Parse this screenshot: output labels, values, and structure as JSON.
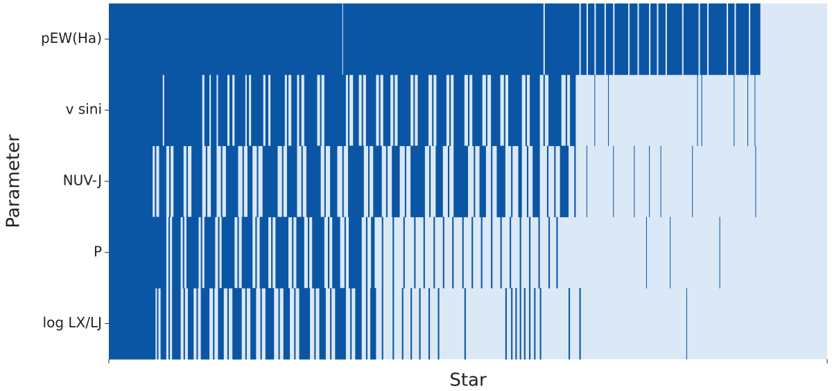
{
  "chart_data": {
    "type": "heatmap",
    "xlabel": "Star",
    "ylabel": "Parameter",
    "xlim": [
      0,
      1000
    ],
    "color": "#0b56a4",
    "background": "#dbe8f6",
    "series": [
      {
        "name": "pEW(Ha)",
        "spans": [
          [
            0,
            325
          ],
          [
            326,
            605
          ],
          [
            607,
            655
          ],
          [
            657,
            665
          ],
          [
            667,
            676
          ],
          [
            678,
            690
          ],
          [
            692,
            702
          ],
          [
            704,
            723
          ],
          [
            725,
            736
          ],
          [
            738,
            752
          ],
          [
            754,
            763
          ],
          [
            765,
            775
          ],
          [
            777,
            798
          ],
          [
            800,
            821
          ],
          [
            823,
            833
          ],
          [
            835,
            860
          ],
          [
            862,
            871
          ],
          [
            873,
            891
          ],
          [
            893,
            907
          ]
        ]
      },
      {
        "name": "v sini",
        "spans": [
          [
            0,
            75
          ],
          [
            77,
            130
          ],
          [
            133,
            140
          ],
          [
            142,
            150
          ],
          [
            152,
            165
          ],
          [
            168,
            172
          ],
          [
            175,
            190
          ],
          [
            192,
            195
          ],
          [
            198,
            215
          ],
          [
            218,
            222
          ],
          [
            225,
            245
          ],
          [
            248,
            250
          ],
          [
            254,
            262
          ],
          [
            265,
            268
          ],
          [
            272,
            290
          ],
          [
            294,
            296
          ],
          [
            300,
            330
          ],
          [
            333,
            335
          ],
          [
            340,
            348
          ],
          [
            352,
            354
          ],
          [
            358,
            372
          ],
          [
            376,
            378
          ],
          [
            382,
            392
          ],
          [
            396,
            398
          ],
          [
            402,
            420
          ],
          [
            424,
            426
          ],
          [
            430,
            445
          ],
          [
            450,
            452
          ],
          [
            456,
            470
          ],
          [
            474,
            476
          ],
          [
            480,
            495
          ],
          [
            500,
            502
          ],
          [
            506,
            520
          ],
          [
            525,
            527
          ],
          [
            532,
            545
          ],
          [
            550,
            552
          ],
          [
            556,
            575
          ],
          [
            580,
            582
          ],
          [
            586,
            600
          ],
          [
            605,
            607
          ],
          [
            612,
            630
          ],
          [
            636,
            638
          ],
          [
            642,
            650
          ],
          [
            676,
            677
          ],
          [
            695,
            696
          ],
          [
            819,
            820
          ],
          [
            825,
            826
          ],
          [
            870,
            871
          ],
          [
            889,
            890
          ],
          [
            899,
            900
          ]
        ]
      },
      {
        "name": "NUV-J",
        "spans": [
          [
            0,
            61
          ],
          [
            64,
            66
          ],
          [
            70,
            80
          ],
          [
            84,
            86
          ],
          [
            90,
            104
          ],
          [
            108,
            110
          ],
          [
            115,
            130
          ],
          [
            135,
            137
          ],
          [
            142,
            150
          ],
          [
            156,
            158
          ],
          [
            163,
            180
          ],
          [
            186,
            188
          ],
          [
            193,
            200
          ],
          [
            206,
            208
          ],
          [
            214,
            235
          ],
          [
            241,
            243
          ],
          [
            248,
            262
          ],
          [
            268,
            270
          ],
          [
            275,
            295
          ],
          [
            300,
            302
          ],
          [
            308,
            318
          ],
          [
            325,
            327
          ],
          [
            333,
            355
          ],
          [
            361,
            363
          ],
          [
            368,
            380
          ],
          [
            386,
            388
          ],
          [
            394,
            405
          ],
          [
            412,
            414
          ],
          [
            420,
            440
          ],
          [
            446,
            448
          ],
          [
            455,
            465
          ],
          [
            472,
            474
          ],
          [
            480,
            500
          ],
          [
            508,
            510
          ],
          [
            516,
            525
          ],
          [
            532,
            534
          ],
          [
            540,
            552
          ],
          [
            560,
            562
          ],
          [
            570,
            575
          ],
          [
            582,
            584
          ],
          [
            590,
            600
          ],
          [
            610,
            612
          ],
          [
            620,
            622
          ],
          [
            628,
            640
          ],
          [
            648,
            650
          ],
          [
            665,
            666
          ],
          [
            702,
            703
          ],
          [
            731,
            732
          ],
          [
            752,
            753
          ],
          [
            768,
            769
          ],
          [
            812,
            813
          ],
          [
            900,
            901
          ]
        ]
      },
      {
        "name": "P",
        "spans": [
          [
            0,
            80
          ],
          [
            83,
            85
          ],
          [
            88,
            100
          ],
          [
            103,
            105
          ],
          [
            108,
            125
          ],
          [
            128,
            130
          ],
          [
            133,
            148
          ],
          [
            152,
            154
          ],
          [
            157,
            175
          ],
          [
            179,
            181
          ],
          [
            185,
            200
          ],
          [
            204,
            206
          ],
          [
            210,
            222
          ],
          [
            226,
            228
          ],
          [
            232,
            250
          ],
          [
            255,
            257
          ],
          [
            261,
            272
          ],
          [
            277,
            279
          ],
          [
            283,
            300
          ],
          [
            305,
            307
          ],
          [
            311,
            322
          ],
          [
            328,
            330
          ],
          [
            334,
            352
          ],
          [
            358,
            360
          ],
          [
            365,
            370
          ],
          [
            380,
            382
          ],
          [
            395,
            397
          ],
          [
            410,
            412
          ],
          [
            425,
            427
          ],
          [
            438,
            440
          ],
          [
            452,
            454
          ],
          [
            465,
            467
          ],
          [
            478,
            480
          ],
          [
            492,
            494
          ],
          [
            505,
            507
          ],
          [
            518,
            520
          ],
          [
            532,
            534
          ],
          [
            545,
            547
          ],
          [
            558,
            560
          ],
          [
            572,
            574
          ],
          [
            585,
            587
          ],
          [
            598,
            600
          ],
          [
            612,
            614
          ],
          [
            623,
            625
          ],
          [
            748,
            749
          ],
          [
            781,
            782
          ],
          [
            850,
            851
          ]
        ]
      },
      {
        "name": "log LX/LJ",
        "spans": [
          [
            0,
            65
          ],
          [
            67,
            69
          ],
          [
            72,
            80
          ],
          [
            83,
            85
          ],
          [
            88,
            100
          ],
          [
            104,
            106
          ],
          [
            110,
            118
          ],
          [
            122,
            124
          ],
          [
            128,
            140
          ],
          [
            145,
            147
          ],
          [
            152,
            160
          ],
          [
            165,
            167
          ],
          [
            172,
            185
          ],
          [
            190,
            192
          ],
          [
            197,
            205
          ],
          [
            211,
            213
          ],
          [
            218,
            230
          ],
          [
            236,
            238
          ],
          [
            243,
            252
          ],
          [
            258,
            260
          ],
          [
            265,
            280
          ],
          [
            286,
            288
          ],
          [
            293,
            302
          ],
          [
            308,
            310
          ],
          [
            315,
            330
          ],
          [
            336,
            338
          ],
          [
            343,
            352
          ],
          [
            358,
            360
          ],
          [
            364,
            372
          ],
          [
            380,
            382
          ],
          [
            395,
            397
          ],
          [
            408,
            410
          ],
          [
            420,
            422
          ],
          [
            432,
            434
          ],
          [
            445,
            447
          ],
          [
            458,
            460
          ],
          [
            495,
            497
          ],
          [
            552,
            554
          ],
          [
            560,
            562
          ],
          [
            566,
            568
          ],
          [
            572,
            574
          ],
          [
            578,
            580
          ],
          [
            585,
            587
          ],
          [
            592,
            594
          ],
          [
            600,
            602
          ],
          [
            640,
            642
          ],
          [
            655,
            657
          ],
          [
            804,
            805
          ]
        ]
      }
    ]
  }
}
